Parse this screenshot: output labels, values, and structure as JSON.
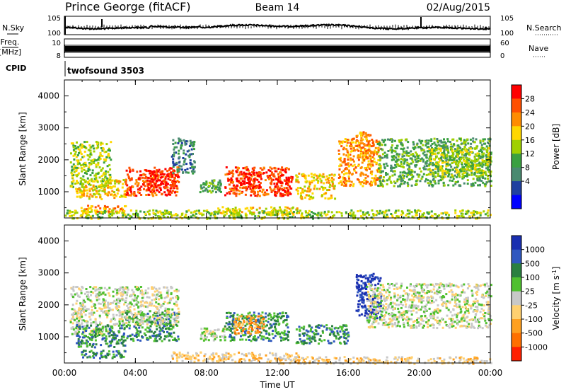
{
  "header": {
    "station": "Prince George (fitACF)",
    "beam": "Beam 14",
    "date": "02/Aug/2015"
  },
  "side_labels": {
    "nsky": "N.Sky",
    "freq_line1": "Freq.",
    "freq_line2": "[MHz]",
    "cpid": "CPID",
    "nsearch": "N.Search",
    "nave": "Nave",
    "cpid_value": "twofsound 3503"
  },
  "noise_panel": {
    "left_ticks": [
      "10^5",
      "10^0"
    ],
    "right_ticks": [
      "10^5",
      "10^0"
    ]
  },
  "freq_panel": {
    "left_ticks": [
      "10",
      "8"
    ],
    "right_ticks": [
      "60",
      "0"
    ]
  },
  "chart_data": [
    {
      "type": "heatmap",
      "name": "power",
      "ylabel": "Slant Range [km]",
      "ylim": [
        180,
        4500
      ],
      "yticks": [
        1000,
        2000,
        3000,
        4000
      ],
      "xlabel": "Time UT",
      "xticks": [
        "00:00",
        "04:00",
        "08:00",
        "12:00",
        "16:00",
        "20:00",
        "00:00"
      ],
      "colorbar": {
        "label": "Power [dB]",
        "ticks": [
          "28",
          "24",
          "20",
          "16",
          "12",
          "8",
          "4"
        ],
        "colors": [
          "#ff0000",
          "#ff5000",
          "#ff8c00",
          "#ffd700",
          "#a0d000",
          "#3aa040",
          "#4a8a70",
          "#2040a0",
          "#0000ff"
        ]
      },
      "regions": [
        {
          "t0": 0.3,
          "t1": 2.6,
          "r0": 1100,
          "r1": 2600,
          "level": 4
        },
        {
          "t0": 0.6,
          "t1": 3.4,
          "r0": 800,
          "r1": 1400,
          "level": 5
        },
        {
          "t0": 0.9,
          "t1": 3.4,
          "r0": 350,
          "r1": 600,
          "level": 6
        },
        {
          "t0": 3.4,
          "t1": 6.4,
          "r0": 900,
          "r1": 1800,
          "level": 7
        },
        {
          "t0": 4.6,
          "t1": 6.2,
          "r0": 1000,
          "r1": 1700,
          "level": 8
        },
        {
          "t0": 6.0,
          "t1": 7.3,
          "r0": 1600,
          "r1": 2700,
          "level": 2
        },
        {
          "t0": 7.6,
          "t1": 8.8,
          "r0": 1000,
          "r1": 1400,
          "level": 3
        },
        {
          "t0": 8.6,
          "t1": 13.2,
          "r0": 300,
          "r1": 550,
          "level": 5
        },
        {
          "t0": 9.0,
          "t1": 12.6,
          "r0": 900,
          "r1": 1800,
          "level": 7
        },
        {
          "t0": 9.6,
          "t1": 11.0,
          "r0": 1100,
          "r1": 1650,
          "level": 8
        },
        {
          "t0": 11.8,
          "t1": 12.8,
          "r0": 900,
          "r1": 1500,
          "level": 8
        },
        {
          "t0": 13.0,
          "t1": 15.2,
          "r0": 800,
          "r1": 1600,
          "level": 5
        },
        {
          "t0": 15.4,
          "t1": 17.8,
          "r0": 1200,
          "r1": 2700,
          "level": 6
        },
        {
          "t0": 16.4,
          "t1": 17.2,
          "r0": 1700,
          "r1": 2900,
          "level": 6
        },
        {
          "t0": 17.6,
          "t1": 24.0,
          "r0": 1200,
          "r1": 2700,
          "level": 3
        },
        {
          "t0": 20.5,
          "t1": 24.0,
          "r0": 1500,
          "r1": 2400,
          "level": 4
        },
        {
          "t0": 0.0,
          "t1": 24.0,
          "r0": 180,
          "r1": 450,
          "level": 4
        }
      ]
    },
    {
      "type": "heatmap",
      "name": "velocity",
      "ylabel": "Slant Range [km]",
      "ylim": [
        180,
        4500
      ],
      "yticks": [
        1000,
        2000,
        3000,
        4000
      ],
      "xlabel": "Time UT",
      "xticks": [
        "00:00",
        "04:00",
        "08:00",
        "12:00",
        "16:00",
        "20:00",
        "00:00"
      ],
      "colorbar": {
        "label": "Velocity [m s^-1]",
        "ticks": [
          "1000",
          "500",
          "100",
          "25",
          "-25",
          "-100",
          "-500",
          "-1000"
        ],
        "colors": [
          "#1a2fb0",
          "#3058c0",
          "#2a8040",
          "#50c030",
          "#c8c8c8",
          "#ffd070",
          "#ffa020",
          "#ff7000",
          "#ff2000"
        ]
      },
      "regions": [
        {
          "t0": 0.3,
          "t1": 2.6,
          "r0": 1100,
          "r1": 2600,
          "level": 4
        },
        {
          "t0": 0.6,
          "t1": 3.4,
          "r0": 700,
          "r1": 1400,
          "level": 6
        },
        {
          "t0": 0.9,
          "t1": 3.4,
          "r0": 350,
          "r1": 600,
          "level": 6
        },
        {
          "t0": 3.4,
          "t1": 6.4,
          "r0": 900,
          "r1": 1800,
          "level": 6
        },
        {
          "t0": 2.6,
          "t1": 6.4,
          "r0": 1400,
          "r1": 2600,
          "level": 4
        },
        {
          "t0": 7.6,
          "t1": 9.0,
          "r0": 900,
          "r1": 1300,
          "level": 4
        },
        {
          "t0": 6.0,
          "t1": 13.2,
          "r0": 250,
          "r1": 550,
          "level": 3
        },
        {
          "t0": 9.0,
          "t1": 12.6,
          "r0": 900,
          "r1": 1800,
          "level": 6
        },
        {
          "t0": 9.4,
          "t1": 11.2,
          "r0": 1100,
          "r1": 1700,
          "level": 2
        },
        {
          "t0": 13.0,
          "t1": 16.0,
          "r0": 800,
          "r1": 1400,
          "level": 6
        },
        {
          "t0": 16.4,
          "t1": 17.8,
          "r0": 1600,
          "r1": 3000,
          "level": 8
        },
        {
          "t0": 17.0,
          "t1": 24.0,
          "r0": 1300,
          "r1": 2700,
          "level": 4
        },
        {
          "t0": 12.0,
          "t1": 24.0,
          "r0": 180,
          "r1": 400,
          "level": 3
        }
      ]
    }
  ]
}
